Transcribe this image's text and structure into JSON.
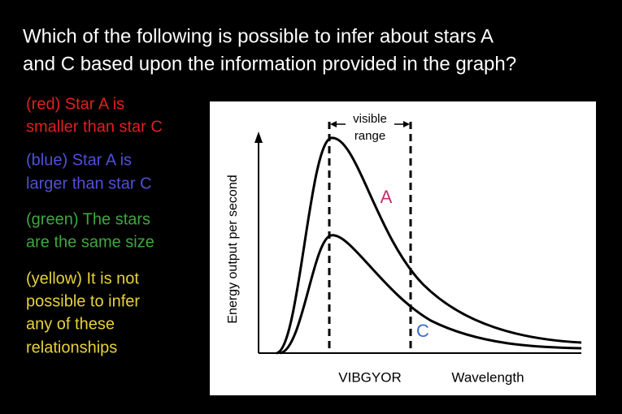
{
  "question": [
    "Which of the following is possible to infer about stars A",
    "and C based upon the information provided in the graph?"
  ],
  "options": [
    {
      "lines": [
        "(red) Star A is",
        "smaller than star C"
      ]
    },
    {
      "lines": [
        "(blue) Star A is",
        "larger than star C"
      ]
    },
    {
      "lines": [
        "(green) The stars",
        "are the same size"
      ]
    },
    {
      "lines": [
        "(yellow) It is not",
        "possible to infer",
        "any of these",
        "relationships"
      ]
    }
  ],
  "graph": {
    "y_label": "Energy output per second",
    "range_label": [
      "visible",
      "range"
    ],
    "curve_a_label": "A",
    "curve_c_label": "C",
    "band_label": "VIBGYOR",
    "x_label": "Wavelength"
  }
}
